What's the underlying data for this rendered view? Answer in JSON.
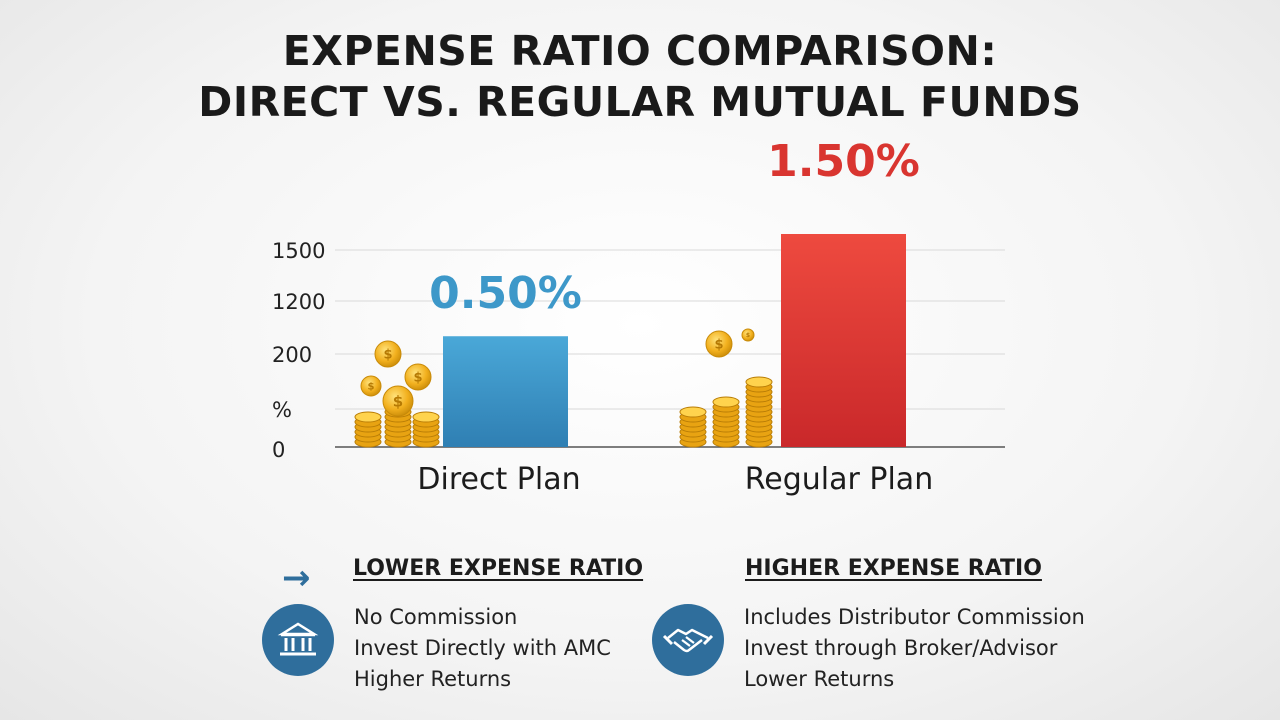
{
  "title": {
    "line1": "EXPENSE RATIO COMPARISON:",
    "line2": "DIRECT VS. REGULAR MUTUAL FUNDS"
  },
  "chart_data": {
    "type": "bar",
    "categories": [
      "Direct Plan",
      "Regular Plan"
    ],
    "values": [
      0.5,
      1.5
    ],
    "value_labels": [
      "0.50%",
      "1.50%"
    ],
    "y_tick_labels": [
      "1500",
      "1200",
      "200",
      "%",
      "0"
    ],
    "grid": true,
    "colors": {
      "direct": "#3f9bd0",
      "regular": "#e33d36",
      "label_direct": "#3d98c9",
      "label_regular": "#d93530"
    }
  },
  "left_panel": {
    "heading": "LOWER EXPENSE RATIO",
    "lines": [
      "No Commission",
      "Invest Directly with AMC",
      "Higher Returns"
    ],
    "icon": "bank-icon",
    "arrow_icon": "arrow-right-icon"
  },
  "right_panel": {
    "heading": "HIGHER EXPENSE RATIO",
    "lines": [
      "Includes Distributor Commission",
      "Invest through Broker/Advisor",
      "Lower Returns"
    ],
    "icon": "handshake-icon"
  },
  "colors": {
    "accent": "#2f6e9c",
    "coin": "#f2b01e"
  }
}
